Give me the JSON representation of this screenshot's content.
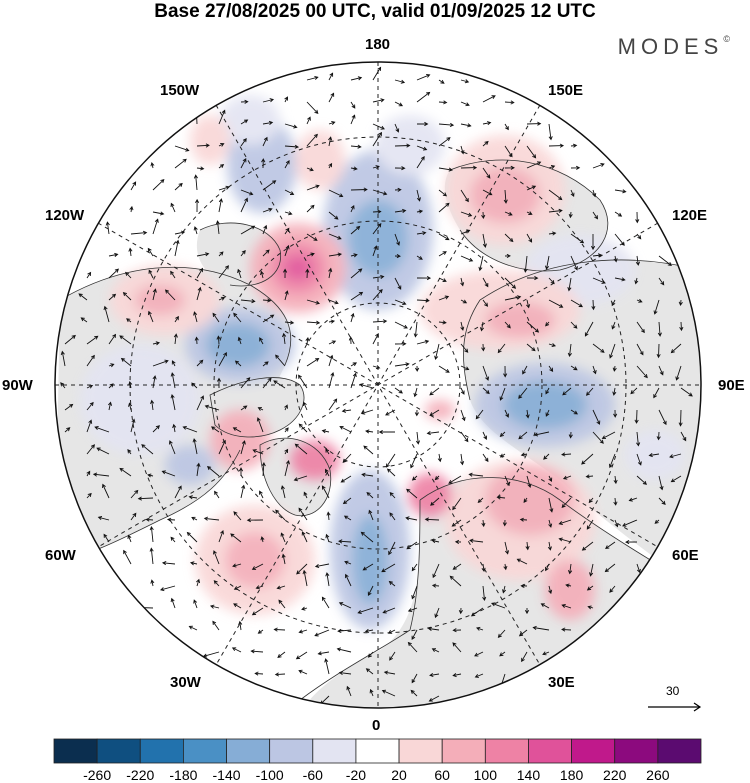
{
  "title": "Base 27/08/2025 00 UTC, valid 01/09/2025 12 UTC",
  "brand": "MODES",
  "brand_mark": "©",
  "longitude_labels": {
    "top": "180",
    "bottom": "0",
    "left": "90W",
    "right": "90E",
    "upper_left_1": "150W",
    "upper_left_2": "120W",
    "upper_right_1": "150E",
    "upper_right_2": "120E",
    "lower_left_1": "60W",
    "lower_left_2": "30W",
    "lower_right_1": "60E",
    "lower_right_2": "30E"
  },
  "reference_vector": "30",
  "colorbar": {
    "ticks": [
      "-260",
      "-220",
      "-180",
      "-140",
      "-100",
      "-60",
      "-20",
      "20",
      "60",
      "100",
      "140",
      "180",
      "220",
      "260"
    ],
    "colors": [
      "#0b2e4f",
      "#0f4f80",
      "#2272ad",
      "#4a90c5",
      "#86add6",
      "#bcc6e3",
      "#e3e4f2",
      "#ffffff",
      "#f9d7d7",
      "#f4aeb9",
      "#ee82a5",
      "#e0529a",
      "#c0198b",
      "#8c0a7e",
      "#5b0b70"
    ]
  },
  "anomaly_colors": {
    "land": "#e6e6e6",
    "negative_weak": "#e3e4f2",
    "negative_mid": "#bcc6e3",
    "negative_strong": "#86add6",
    "positive_weak": "#f9d7d7",
    "positive_mid": "#f4aeb9",
    "positive_strong": "#ee82a5",
    "positive_max": "#e0529a"
  }
}
